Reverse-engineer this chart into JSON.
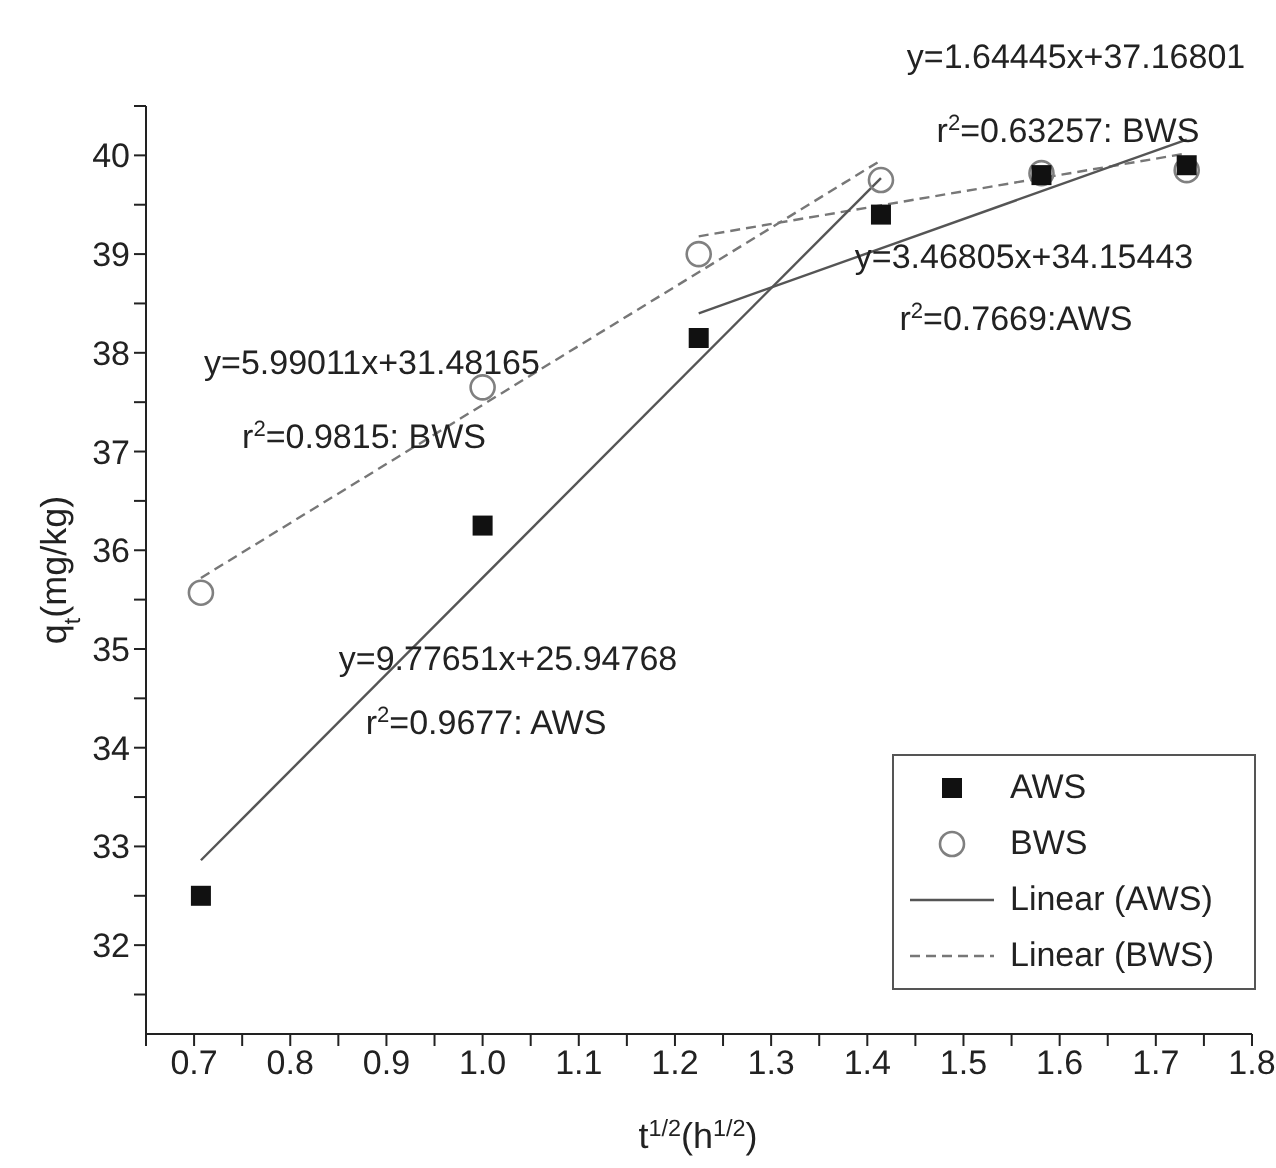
{
  "chart_data": {
    "type": "scatter",
    "xlabel": "t$^{1/2}$(h$^{1/2}$)",
    "ylabel": "q$_{t}$(mg/kg)",
    "xlim": [
      0.65,
      1.8
    ],
    "ylim": [
      31.1,
      40.5
    ],
    "xticks": [
      {
        "value": 0.65,
        "label": null
      },
      0.7,
      {
        "value": 0.75,
        "label": null
      },
      0.8,
      {
        "value": 0.85,
        "label": null
      },
      0.9,
      {
        "value": 0.95,
        "label": null
      },
      {
        "value": 1,
        "label": "1.0"
      },
      {
        "value": 1.05,
        "label": null
      },
      1.1,
      {
        "value": 1.15,
        "label": null
      },
      1.2,
      {
        "value": 1.25,
        "label": null
      },
      1.3,
      {
        "value": 1.35,
        "label": null
      },
      1.4,
      {
        "value": 1.45,
        "label": null
      },
      1.5,
      {
        "value": 1.55,
        "label": null
      },
      1.6,
      {
        "value": 1.65,
        "label": null
      },
      1.7,
      {
        "value": 1.75,
        "label": null
      },
      1.8
    ],
    "yticks": [
      {
        "value": 31.5,
        "label": null
      },
      32,
      {
        "value": 32.5,
        "label": null
      },
      33,
      {
        "value": 33.5,
        "label": null
      },
      34,
      {
        "value": 34.5,
        "label": null
      },
      35,
      {
        "value": 35.5,
        "label": null
      },
      36,
      {
        "value": 36.5,
        "label": null
      },
      37,
      {
        "value": 37.5,
        "label": null
      },
      38,
      {
        "value": 38.5,
        "label": null
      },
      39,
      {
        "value": 39.5,
        "label": null
      },
      40,
      {
        "value": 40.5,
        "label": null
      }
    ],
    "legend": "bottom right",
    "series": [
      {
        "name": "AWS",
        "marker": "square",
        "color": "#111111",
        "x": [
          0.7071,
          1.0,
          1.2247,
          1.4142,
          1.5811,
          1.7321
        ],
        "values": [
          32.5,
          36.25,
          38.15,
          39.4,
          39.8,
          39.9
        ]
      },
      {
        "name": "BWS",
        "marker": "circle",
        "color": "#808080",
        "x": [
          0.7071,
          1.0,
          1.2247,
          1.4142,
          1.5811,
          1.7321
        ],
        "values": [
          35.57,
          37.65,
          39.0,
          39.75,
          39.82,
          39.85
        ]
      },
      {
        "name": "Linear (AWS)",
        "type": "line",
        "line_style": "solid",
        "color": "#555555",
        "x": [
          0.7071,
          1.4142
        ],
        "values": [
          32.86,
          39.77
        ]
      },
      {
        "name": "Linear (BWS)",
        "type": "line",
        "line_style": "dashed",
        "color": "#777777",
        "x": [
          0.7071,
          1.4142
        ],
        "values": [
          35.72,
          39.95
        ]
      },
      {
        "type": "line",
        "line_style": "solid",
        "color": "#555555",
        "x": [
          1.2247,
          1.7321
        ],
        "values": [
          38.4,
          40.16
        ]
      },
      {
        "type": "line",
        "line_style": "dashed",
        "color": "#777777",
        "x": [
          1.2247,
          1.7321
        ],
        "values": [
          39.18,
          40.02
        ]
      }
    ],
    "annotations": [
      "y=1.64445x+37.16801",
      "r$^{2}$=0.63257: BWS",
      "y=3.46805x+34.15443",
      "r$^{2}$=0.7669:AWS",
      "y=5.99011x+31.48165",
      "r$^{2}$=0.9815: BWS",
      "y=9.77651x+25.94768",
      "r$^{2}$=0.9677: AWS"
    ]
  }
}
